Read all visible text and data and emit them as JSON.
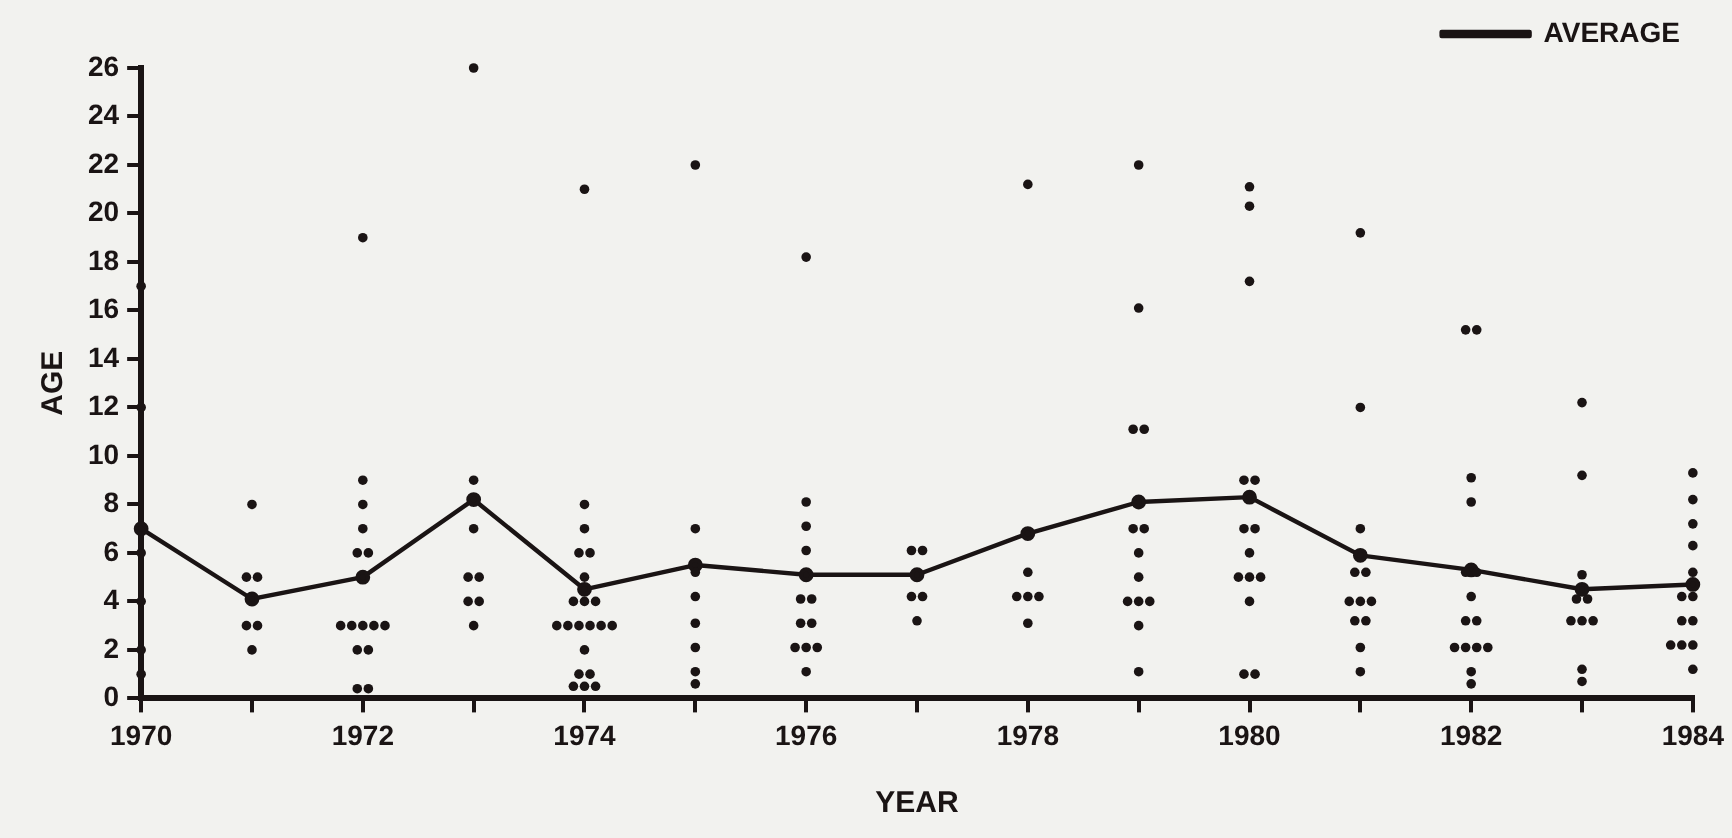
{
  "chart_data": {
    "type": "scatter",
    "xlabel": "YEAR",
    "ylabel": "AGE",
    "xlim": [
      1970,
      1984
    ],
    "ylim": [
      0,
      26
    ],
    "xticks": [
      1970,
      {
        "value": 1971,
        "label": null
      },
      1972,
      {
        "value": 1973,
        "label": null
      },
      1974,
      {
        "value": 1975,
        "label": null
      },
      1976,
      {
        "value": 1977,
        "label": null
      },
      1978,
      {
        "value": 1979,
        "label": null
      },
      1980,
      {
        "value": 1981,
        "label": null
      },
      1982,
      {
        "value": 1983,
        "label": null
      },
      1984
    ],
    "yticks": [
      0,
      2,
      4,
      6,
      8,
      10,
      12,
      14,
      16,
      18,
      20,
      22,
      24,
      26
    ],
    "grid": false,
    "legend": "top right",
    "marker": "circle",
    "series": [
      {
        "type": "scatter",
        "color": "#1a1414",
        "x": [
          1970,
          1970,
          1970,
          1970,
          1970,
          1970,
          1971,
          1970.95,
          1971.05,
          1970.95,
          1971.05,
          1971,
          1972,
          1972,
          1972,
          1972,
          1971.95,
          1972.05,
          1971.8,
          1971.9,
          1972,
          1972.1,
          1972.2,
          1971.95,
          1972.05,
          1971.95,
          1972.05,
          1973,
          1973,
          1973,
          1972.95,
          1973.05,
          1972.95,
          1973.05,
          1973,
          1974,
          1974,
          1974,
          1973.95,
          1974.05,
          1974,
          1973.9,
          1974,
          1974.1,
          1973.75,
          1973.85,
          1973.95,
          1974.05,
          1974.15,
          1974.25,
          1974,
          1973.95,
          1974.05,
          1973.9,
          1974,
          1974.1,
          1975,
          1975,
          1975,
          1975,
          1975,
          1975,
          1975,
          1975,
          1976,
          1976,
          1976,
          1976,
          1975.95,
          1976.05,
          1975.95,
          1976.05,
          1975.9,
          1976,
          1976.1,
          1976,
          1976.95,
          1977.05,
          1976.95,
          1977.05,
          1977,
          1978,
          1978,
          1977.9,
          1978,
          1978.1,
          1978,
          1979,
          1979,
          1978.95,
          1979.05,
          1978.95,
          1979.05,
          1979,
          1979,
          1978.9,
          1979,
          1979.1,
          1979,
          1979,
          1980,
          1980,
          1980,
          1979.95,
          1980.05,
          1979.95,
          1980.05,
          1980,
          1979.9,
          1980,
          1980.1,
          1980,
          1979.95,
          1980.05,
          1981,
          1981,
          1981,
          1980.95,
          1981.05,
          1980.9,
          1981,
          1981.1,
          1980.95,
          1981.05,
          1981,
          1981,
          1981.95,
          1982.05,
          1982,
          1982,
          1981.95,
          1982.05,
          1982,
          1981.95,
          1982.05,
          1981.85,
          1981.95,
          1982.05,
          1982.15,
          1982,
          1982,
          1983,
          1983,
          1983,
          1982.95,
          1983.05,
          1982.9,
          1983,
          1983.1,
          1983,
          1983,
          1984,
          1984,
          1984,
          1984,
          1984,
          1983.9,
          1984,
          1983.9,
          1984,
          1983.8,
          1983.9,
          1984,
          1984
        ],
        "values": [
          17,
          12,
          6,
          4,
          2,
          1,
          8,
          5,
          5,
          3,
          3,
          2,
          19,
          9,
          8,
          7,
          6,
          6,
          3,
          3,
          3,
          3,
          3,
          2,
          2,
          0.4,
          0.4,
          26,
          9,
          7,
          5,
          5,
          4,
          4,
          3,
          21,
          8,
          7,
          6,
          6,
          5,
          4,
          4,
          4,
          3,
          3,
          3,
          3,
          3,
          3,
          2,
          1,
          1,
          0.5,
          0.5,
          0.5,
          22,
          7,
          5.2,
          4.2,
          3.1,
          2.1,
          1.1,
          0.6,
          18.2,
          8.1,
          7.1,
          6.1,
          4.1,
          4.1,
          3.1,
          3.1,
          2.1,
          2.1,
          2.1,
          1.1,
          6.1,
          6.1,
          4.2,
          4.2,
          3.2,
          21.2,
          5.2,
          4.2,
          4.2,
          4.2,
          3.1,
          22,
          16.1,
          11.1,
          11.1,
          7,
          7,
          6,
          5,
          4,
          4,
          4,
          3,
          1.1,
          21.1,
          20.3,
          17.2,
          9,
          9,
          7,
          7,
          6,
          5,
          5,
          5,
          4,
          1,
          1,
          19.2,
          12,
          7,
          5.2,
          5.2,
          4,
          4,
          4,
          3.2,
          3.2,
          2.1,
          1.1,
          15.2,
          15.2,
          9.1,
          8.1,
          5.2,
          5.2,
          4.2,
          3.2,
          3.2,
          2.1,
          2.1,
          2.1,
          2.1,
          1.1,
          0.6,
          12.2,
          9.2,
          5.1,
          4.1,
          4.1,
          3.2,
          3.2,
          3.2,
          1.2,
          0.7,
          9.3,
          8.2,
          7.2,
          6.3,
          5.2,
          4.2,
          4.2,
          3.2,
          3.2,
          2.2,
          2.2,
          2.2,
          1.2
        ]
      },
      {
        "type": "line",
        "name": "AVERAGE",
        "color": "#1a1414",
        "x": [
          1970,
          1971,
          1972,
          1973,
          1974,
          1975,
          1976,
          1977,
          1978,
          1979,
          1980,
          1981,
          1982,
          1983,
          1984
        ],
        "values": [
          7,
          4.1,
          5,
          8.2,
          4.5,
          5.5,
          5.1,
          5.1,
          6.8,
          8.1,
          8.3,
          5.9,
          5.3,
          4.5,
          4.7
        ]
      }
    ]
  }
}
